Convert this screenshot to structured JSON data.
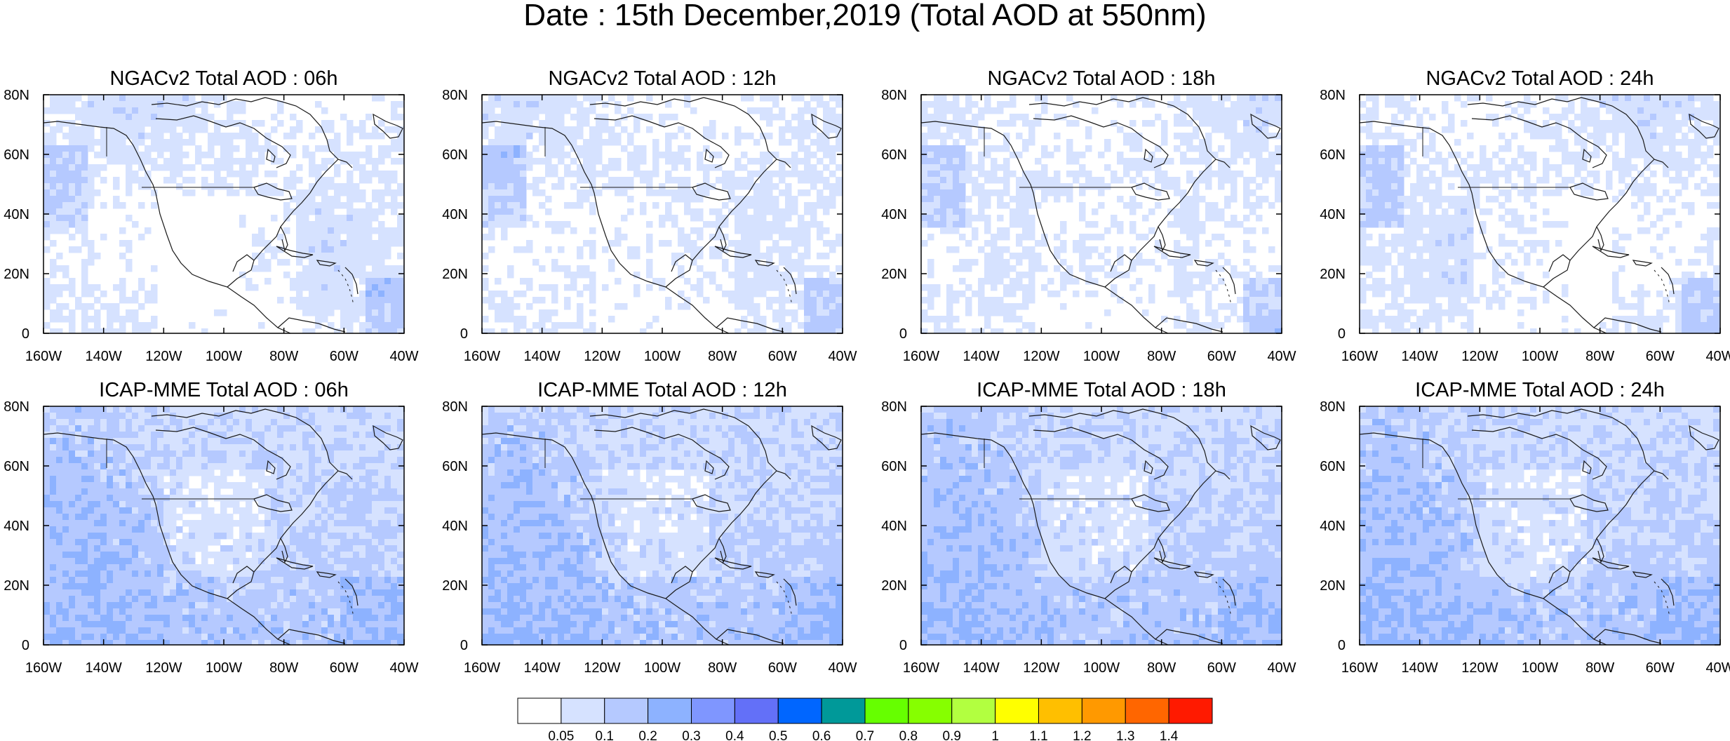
{
  "main_title": "Date : 15th December,2019 (Total AOD at 550nm)",
  "map_extent": {
    "lon": [
      -160,
      -40
    ],
    "lat": [
      0,
      80
    ]
  },
  "lon_ticks": [
    {
      "value": -160,
      "label": "160W"
    },
    {
      "value": -140,
      "label": "140W"
    },
    {
      "value": -120,
      "label": "120W"
    },
    {
      "value": -100,
      "label": "100W"
    },
    {
      "value": -80,
      "label": "80W"
    },
    {
      "value": -60,
      "label": "60W"
    },
    {
      "value": -40,
      "label": "40W"
    }
  ],
  "lat_ticks": [
    {
      "value": 0,
      "label": "0"
    },
    {
      "value": 20,
      "label": "20N"
    },
    {
      "value": 40,
      "label": "40N"
    },
    {
      "value": 60,
      "label": "60N"
    },
    {
      "value": 80,
      "label": "80N"
    }
  ],
  "panels": [
    {
      "title": "NGACv2 Total AOD : 06h",
      "model": "NGACv2",
      "hour": "06h"
    },
    {
      "title": "NGACv2 Total AOD : 12h",
      "model": "NGACv2",
      "hour": "12h"
    },
    {
      "title": "NGACv2 Total AOD : 18h",
      "model": "NGACv2",
      "hour": "18h"
    },
    {
      "title": "NGACv2 Total AOD : 24h",
      "model": "NGACv2",
      "hour": "24h"
    },
    {
      "title": "ICAP-MME Total AOD : 06h",
      "model": "ICAP-MME",
      "hour": "06h"
    },
    {
      "title": "ICAP-MME Total AOD : 12h",
      "model": "ICAP-MME",
      "hour": "12h"
    },
    {
      "title": "ICAP-MME Total AOD : 18h",
      "model": "ICAP-MME",
      "hour": "18h"
    },
    {
      "title": "ICAP-MME Total AOD : 24h",
      "model": "ICAP-MME",
      "hour": "24h"
    }
  ],
  "colorbar": {
    "colors": [
      "#ffffff",
      "#d6e2ff",
      "#b5c9ff",
      "#8db2ff",
      "#7f96ff",
      "#6370f8",
      "#0066ff",
      "#009999",
      "#66ff00",
      "#86ff00",
      "#b2ff40",
      "#ffff00",
      "#ffbf00",
      "#ff9900",
      "#ff6600",
      "#ff1a00"
    ],
    "labels": [
      "0.05",
      "0.1",
      "0.2",
      "0.3",
      "0.4",
      "0.5",
      "0.6",
      "0.7",
      "0.8",
      "0.9",
      "1",
      "1.1",
      "1.2",
      "1.3",
      "1.4"
    ]
  },
  "dominant_aod_classes": {
    "NGACv2": "mostly below 0.1, patches 0.1-0.3",
    "ICAP-MME": "mostly 0.05-0.2, patches 0.2-0.3"
  }
}
